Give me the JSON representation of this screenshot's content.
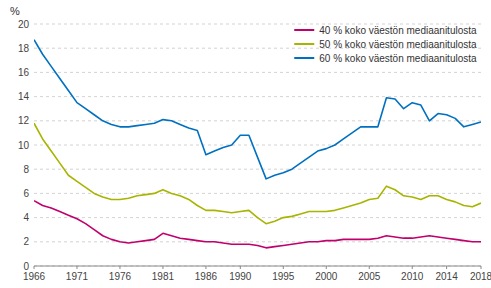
{
  "chart_data": {
    "type": "line",
    "y_label": "%",
    "x": [
      1966,
      1967,
      1968,
      1969,
      1970,
      1971,
      1972,
      1973,
      1974,
      1975,
      1976,
      1977,
      1978,
      1979,
      1980,
      1981,
      1982,
      1983,
      1984,
      1985,
      1986,
      1987,
      1988,
      1989,
      1990,
      1991,
      1992,
      1993,
      1994,
      1995,
      1996,
      1997,
      1998,
      1999,
      2000,
      2001,
      2002,
      2003,
      2004,
      2005,
      2006,
      2007,
      2008,
      2009,
      2010,
      2011,
      2012,
      2013,
      2014,
      2015,
      2016,
      2017,
      2018
    ],
    "series": [
      {
        "name": "40 % koko väestön mediaanitulosta",
        "color": "#c0006c",
        "values": [
          5.4,
          5.0,
          4.8,
          4.5,
          4.2,
          3.9,
          3.5,
          3.0,
          2.5,
          2.2,
          2.0,
          1.9,
          2.0,
          2.1,
          2.2,
          2.7,
          2.5,
          2.3,
          2.2,
          2.1,
          2.0,
          2.0,
          1.9,
          1.8,
          1.8,
          1.8,
          1.7,
          1.5,
          1.6,
          1.7,
          1.8,
          1.9,
          2.0,
          2.0,
          2.1,
          2.1,
          2.2,
          2.2,
          2.2,
          2.2,
          2.3,
          2.5,
          2.4,
          2.3,
          2.3,
          2.4,
          2.5,
          2.4,
          2.3,
          2.2,
          2.1,
          2.0,
          2.0
        ]
      },
      {
        "name": "50 % koko väestön mediaanitulosta",
        "color": "#a8b400",
        "values": [
          11.8,
          10.5,
          9.5,
          8.5,
          7.5,
          7.0,
          6.5,
          6.0,
          5.7,
          5.5,
          5.5,
          5.6,
          5.8,
          5.9,
          6.0,
          6.3,
          6.0,
          5.8,
          5.5,
          5.0,
          4.6,
          4.6,
          4.5,
          4.4,
          4.5,
          4.6,
          4.0,
          3.5,
          3.7,
          4.0,
          4.1,
          4.3,
          4.5,
          4.5,
          4.5,
          4.6,
          4.8,
          5.0,
          5.2,
          5.5,
          5.6,
          6.6,
          6.3,
          5.8,
          5.7,
          5.5,
          5.8,
          5.8,
          5.5,
          5.3,
          5.0,
          4.9,
          5.2
        ]
      },
      {
        "name": "60 % koko väestön mediaanitulosta",
        "color": "#0070c0",
        "values": [
          18.7,
          17.5,
          16.5,
          15.5,
          14.5,
          13.5,
          13.0,
          12.5,
          12.0,
          11.7,
          11.5,
          11.5,
          11.6,
          11.7,
          11.8,
          12.1,
          12.0,
          11.7,
          11.4,
          11.2,
          9.2,
          9.5,
          9.8,
          10.0,
          10.8,
          10.8,
          9.0,
          7.2,
          7.5,
          7.7,
          8.0,
          8.5,
          9.0,
          9.5,
          9.7,
          10.0,
          10.5,
          11.0,
          11.5,
          11.5,
          11.5,
          13.9,
          13.8,
          13.0,
          13.5,
          13.3,
          12.0,
          12.6,
          12.5,
          12.2,
          11.5,
          11.7,
          11.9
        ]
      }
    ],
    "xlim": [
      1966,
      2018
    ],
    "xticks": [
      1966,
      1971,
      1976,
      1981,
      1986,
      1990,
      1995,
      2000,
      2005,
      2010,
      2014,
      2018
    ],
    "ylim": [
      0,
      20
    ],
    "yticks": [
      0,
      2,
      4,
      6,
      8,
      10,
      12,
      14,
      16,
      18,
      20
    ],
    "grid": true,
    "legend": "upper right"
  }
}
